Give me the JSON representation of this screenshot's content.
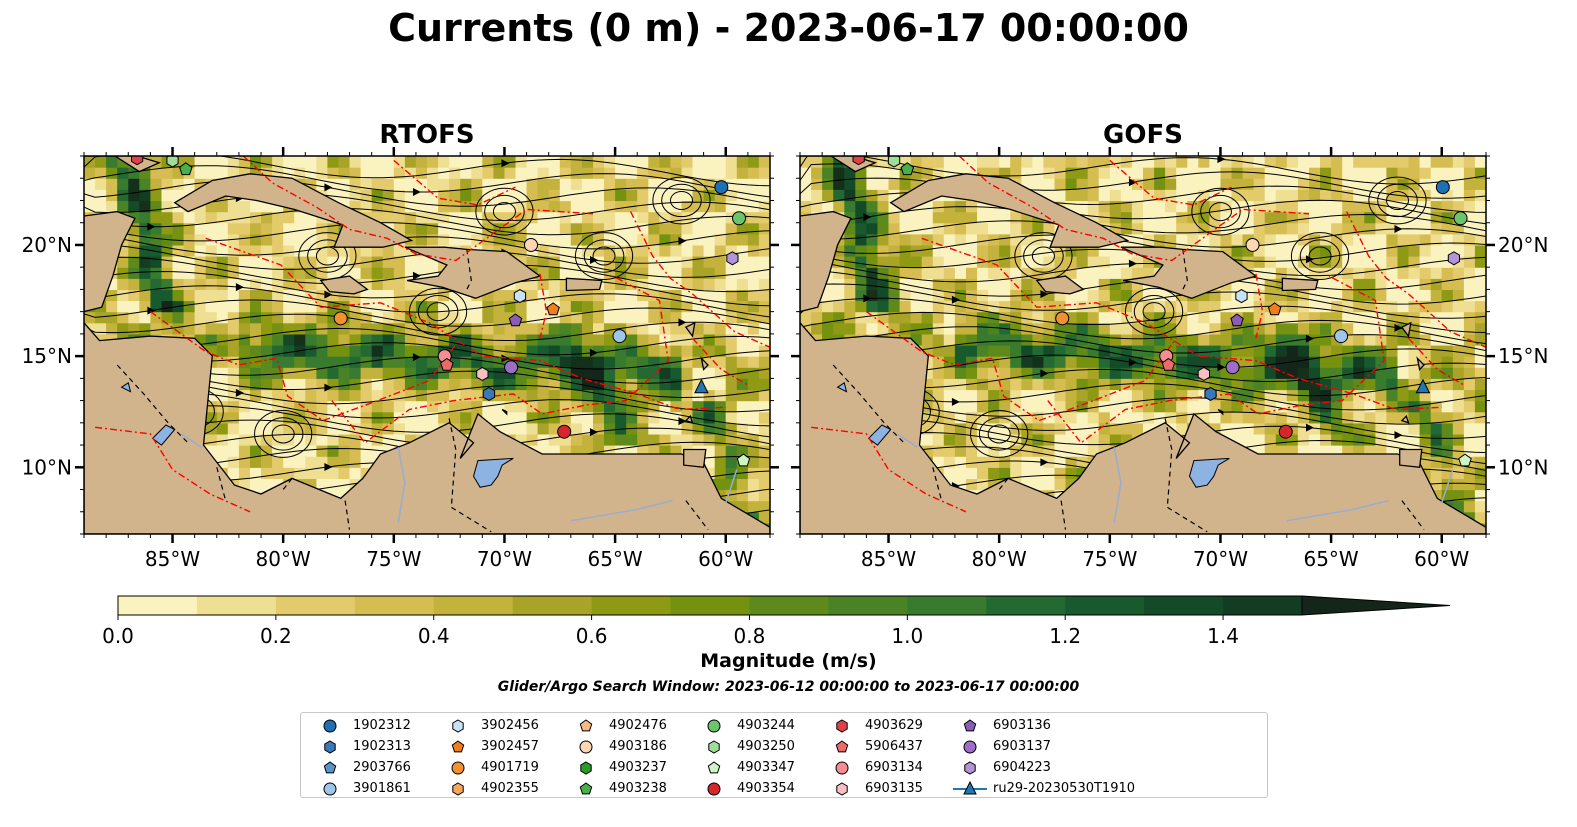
{
  "title": "Currents (0 m) - 2023-06-17 00:00:00",
  "panels": [
    {
      "title": "RTOFS"
    },
    {
      "title": "GOFS"
    }
  ],
  "map_extent": {
    "lon_min": -89,
    "lon_max": -58,
    "lat_min": 7,
    "lat_max": 24
  },
  "x_ticks": [
    {
      "lon": -85,
      "label": "85°W"
    },
    {
      "lon": -80,
      "label": "80°W"
    },
    {
      "lon": -75,
      "label": "75°W"
    },
    {
      "lon": -70,
      "label": "70°W"
    },
    {
      "lon": -65,
      "label": "65°W"
    },
    {
      "lon": -60,
      "label": "60°W"
    }
  ],
  "y_ticks": [
    {
      "lat": 20,
      "label": "20°N"
    },
    {
      "lat": 15,
      "label": "15°N"
    },
    {
      "lat": 10,
      "label": "10°N"
    }
  ],
  "colorbar": {
    "label": "Magnitude (m/s)",
    "min": 0.0,
    "max": 1.5,
    "step": 0.1,
    "extend": "max",
    "colors": [
      "#fbf3bf",
      "#efdf92",
      "#e3cb6c",
      "#d6bd52",
      "#c3b23c",
      "#a9a428",
      "#8e9a14",
      "#749210",
      "#5d8a1a",
      "#4a8226",
      "#387a2e",
      "#236a32",
      "#185a2e",
      "#134a28",
      "#133d22",
      "#14301b",
      "#14261a"
    ],
    "ticks": [
      {
        "value": 0.0,
        "label": "0.0"
      },
      {
        "value": 0.2,
        "label": "0.2"
      },
      {
        "value": 0.4,
        "label": "0.4"
      },
      {
        "value": 0.6,
        "label": "0.6"
      },
      {
        "value": 0.8,
        "label": "0.8"
      },
      {
        "value": 1.0,
        "label": "1.0"
      },
      {
        "value": 1.2,
        "label": "1.2"
      },
      {
        "value": 1.4,
        "label": "1.4"
      }
    ]
  },
  "search_window": "Glider/Argo Search Window: 2023-06-12 00:00:00 to 2023-06-17 00:00:00",
  "colors": {
    "land": "#d2b48c",
    "lakes": "#8db3e2",
    "eez": "#ff0000",
    "ocean_low": "#fbf3bf"
  },
  "legend": [
    {
      "label": "1902312",
      "marker": "circle",
      "color": "#1f6fb4"
    },
    {
      "label": "1902313",
      "marker": "hexagon",
      "color": "#3a78b8"
    },
    {
      "label": "2903766",
      "marker": "pentagon",
      "color": "#5b93c5"
    },
    {
      "label": "3901861",
      "marker": "circle",
      "color": "#9ec6e8"
    },
    {
      "label": "3902456",
      "marker": "hexagon",
      "color": "#c6e2f5"
    },
    {
      "label": "3902457",
      "marker": "pentagon",
      "color": "#f07e1a"
    },
    {
      "label": "4901719",
      "marker": "circle",
      "color": "#f29032"
    },
    {
      "label": "4902355",
      "marker": "hexagon",
      "color": "#f6a55c"
    },
    {
      "label": "4902476",
      "marker": "pentagon",
      "color": "#fab981"
    },
    {
      "label": "4903186",
      "marker": "circle",
      "color": "#fdd6b4"
    },
    {
      "label": "4903237",
      "marker": "hexagon",
      "color": "#2a9a2a"
    },
    {
      "label": "4903238",
      "marker": "pentagon",
      "color": "#48b048"
    },
    {
      "label": "4903244",
      "marker": "circle",
      "color": "#6cc46c"
    },
    {
      "label": "4903250",
      "marker": "hexagon",
      "color": "#9ede9a"
    },
    {
      "label": "4903347",
      "marker": "pentagon",
      "color": "#cdf4c4"
    },
    {
      "label": "4903354",
      "marker": "circle",
      "color": "#d6262b"
    },
    {
      "label": "4903629",
      "marker": "hexagon",
      "color": "#e04048"
    },
    {
      "label": "5906437",
      "marker": "pentagon",
      "color": "#ec6a6a"
    },
    {
      "label": "6903134",
      "marker": "circle",
      "color": "#f48e92"
    },
    {
      "label": "6903135",
      "marker": "hexagon",
      "color": "#f8c0c2"
    },
    {
      "label": "6903136",
      "marker": "pentagon",
      "color": "#8a5cb8"
    },
    {
      "label": "6903137",
      "marker": "circle",
      "color": "#9c6ec8"
    },
    {
      "label": "6904223",
      "marker": "hexagon",
      "color": "#b394d6"
    },
    {
      "label": "ru29-20230530T1910",
      "marker": "triangle-line",
      "color": "#1f77b4"
    }
  ],
  "floats": [
    {
      "id": "1902312",
      "lon": -60.2,
      "lat": 22.6
    },
    {
      "id": "4903244",
      "lon": -59.4,
      "lat": 21.2
    },
    {
      "id": "4903186",
      "lon": -68.8,
      "lat": 20.0
    },
    {
      "id": "6904223",
      "lon": -59.7,
      "lat": 19.4
    },
    {
      "id": "3902456",
      "lon": -69.3,
      "lat": 17.7
    },
    {
      "id": "3902457",
      "lon": -67.8,
      "lat": 17.1
    },
    {
      "id": "4901719",
      "lon": -77.4,
      "lat": 16.7
    },
    {
      "id": "6903136",
      "lon": -69.5,
      "lat": 16.6
    },
    {
      "id": "3901861",
      "lon": -64.8,
      "lat": 15.9
    },
    {
      "id": "6903134",
      "lon": -72.7,
      "lat": 15.0
    },
    {
      "id": "5906437",
      "lon": -72.6,
      "lat": 14.6
    },
    {
      "id": "6903137",
      "lon": -69.7,
      "lat": 14.5
    },
    {
      "id": "6903135",
      "lon": -71.0,
      "lat": 14.2
    },
    {
      "id": "1902313",
      "lon": -70.7,
      "lat": 13.3
    },
    {
      "id": "ru29-20230530T1910",
      "lon": -61.1,
      "lat": 13.6
    },
    {
      "id": "4903354",
      "lon": -67.3,
      "lat": 11.6
    },
    {
      "id": "4903347",
      "lon": -59.2,
      "lat": 10.3
    },
    {
      "id": "4903250",
      "lon": -85.0,
      "lat": 23.8
    },
    {
      "id": "4903238",
      "lon": -84.4,
      "lat": 23.4
    },
    {
      "id": "4903629",
      "lon": -86.6,
      "lat": 23.9
    }
  ]
}
